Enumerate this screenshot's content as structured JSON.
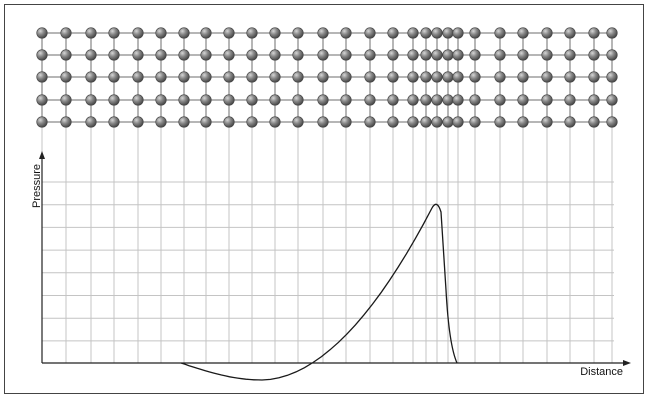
{
  "diagram": {
    "y_axis_label": "Pressure",
    "x_axis_label": "Distance",
    "particle_rows": 5,
    "colors": {
      "frame": "#444444",
      "grid": "#c4c4c4",
      "lattice": "#6e6e6e",
      "particle_dark": "#454545",
      "particle_light": "#d6d6d6",
      "curve": "#1a1a1a",
      "axis": "#222222"
    }
  }
}
